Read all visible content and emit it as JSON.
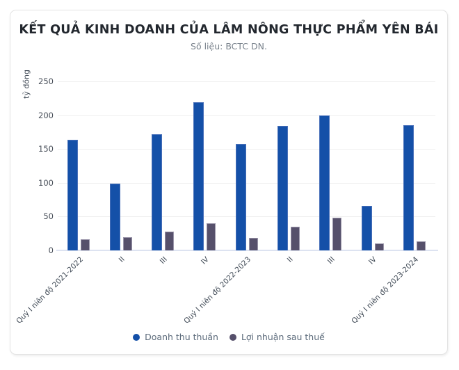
{
  "header": {
    "title": "KẾT QUẢ KINH DOANH CỦA LÂM NÔNG THỰC PHẨM YÊN BÁI",
    "subtitle": "Số liệu: BCTC DN."
  },
  "chart_data": {
    "type": "bar",
    "title": "KẾT QUẢ KINH DOANH CỦA LÂM NÔNG THỰC PHẨM YÊN BÁI",
    "subtitle": "Số liệu: BCTC DN.",
    "xlabel": "",
    "ylabel": "tỷ đồng",
    "ylim": [
      0,
      250
    ],
    "yticks": [
      0,
      50,
      100,
      150,
      200,
      250
    ],
    "grid": true,
    "legend_position": "bottom",
    "categories": [
      "Quý I niên độ 2021-2022",
      "II",
      "III",
      "IV",
      "Quý I niên độ 2022-2023",
      "II",
      "III",
      "IV",
      "Quý I niên độ 2023-2024"
    ],
    "series": [
      {
        "name": "Doanh thu thuần",
        "color": "#1450a8",
        "values": [
          164,
          99,
          172,
          219,
          157,
          184,
          200,
          66,
          185
        ]
      },
      {
        "name": "Lợi nhuận sau thuế",
        "color": "#56506b",
        "values": [
          16,
          20,
          28,
          40,
          19,
          35,
          48,
          10,
          13
        ]
      }
    ]
  },
  "theme": {
    "card_background": "#ffffff",
    "card_border": "#e3e3e3",
    "gridline_color": "#efefef",
    "axis_line_color": "#dde3f1",
    "title_color": "#22272e",
    "subtitle_color": "#79828c",
    "tick_label_color": "#474e58",
    "legend_text_color": "#5b6a7a"
  }
}
